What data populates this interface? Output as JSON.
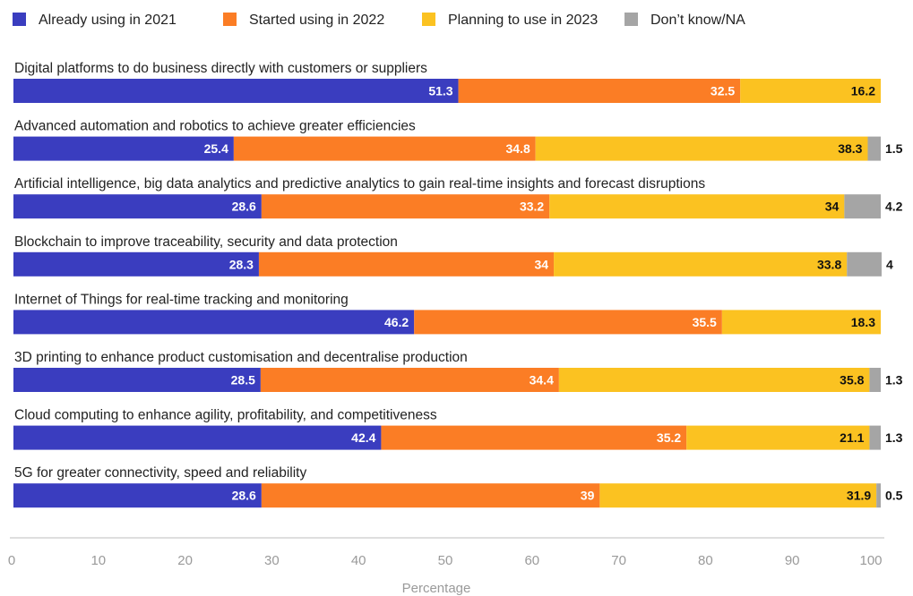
{
  "chart_data": {
    "type": "bar",
    "orientation": "horizontal",
    "stacked": true,
    "title": "",
    "xlabel": "Percentage",
    "ylabel": "",
    "xlim": [
      0,
      100
    ],
    "xticks": [
      0,
      10,
      20,
      30,
      40,
      50,
      60,
      70,
      80,
      90,
      100
    ],
    "grid": false,
    "legend_position": "top",
    "categories": [
      "Digital platforms to do business directly with customers or suppliers",
      "Advanced automation and robotics to achieve greater efficiencies",
      "Artificial intelligence, big data analytics and predictive analytics to gain real-time insights and forecast disruptions",
      "Blockchain to improve traceability, security and data protection",
      "Internet of Things for real-time tracking and monitoring",
      "3D printing to enhance product customisation and decentralise production",
      "Cloud computing to enhance agility, profitability, and competitiveness",
      "5G for greater connectivity, speed and reliability"
    ],
    "series": [
      {
        "name": "Already using in 2021",
        "color": "#3a3dbf",
        "label_color": "#ffffff",
        "values": [
          51.3,
          25.4,
          28.6,
          28.3,
          46.2,
          28.5,
          42.4,
          28.6
        ]
      },
      {
        "name": "Started using in 2022",
        "color": "#fb7d25",
        "label_color": "#ffffff",
        "values": [
          32.5,
          34.8,
          33.2,
          34,
          35.5,
          34.4,
          35.2,
          39
        ]
      },
      {
        "name": "Planning to use in 2023",
        "color": "#fbc221",
        "label_color": "#111111",
        "values": [
          16.2,
          38.3,
          34,
          33.8,
          18.3,
          35.8,
          21.1,
          31.9
        ]
      },
      {
        "name": "Don’t know/NA",
        "color": "#a5a5a5",
        "label_color": "#111111",
        "values": [
          null,
          1.5,
          4.2,
          4,
          null,
          1.3,
          1.3,
          0.5
        ]
      }
    ]
  }
}
